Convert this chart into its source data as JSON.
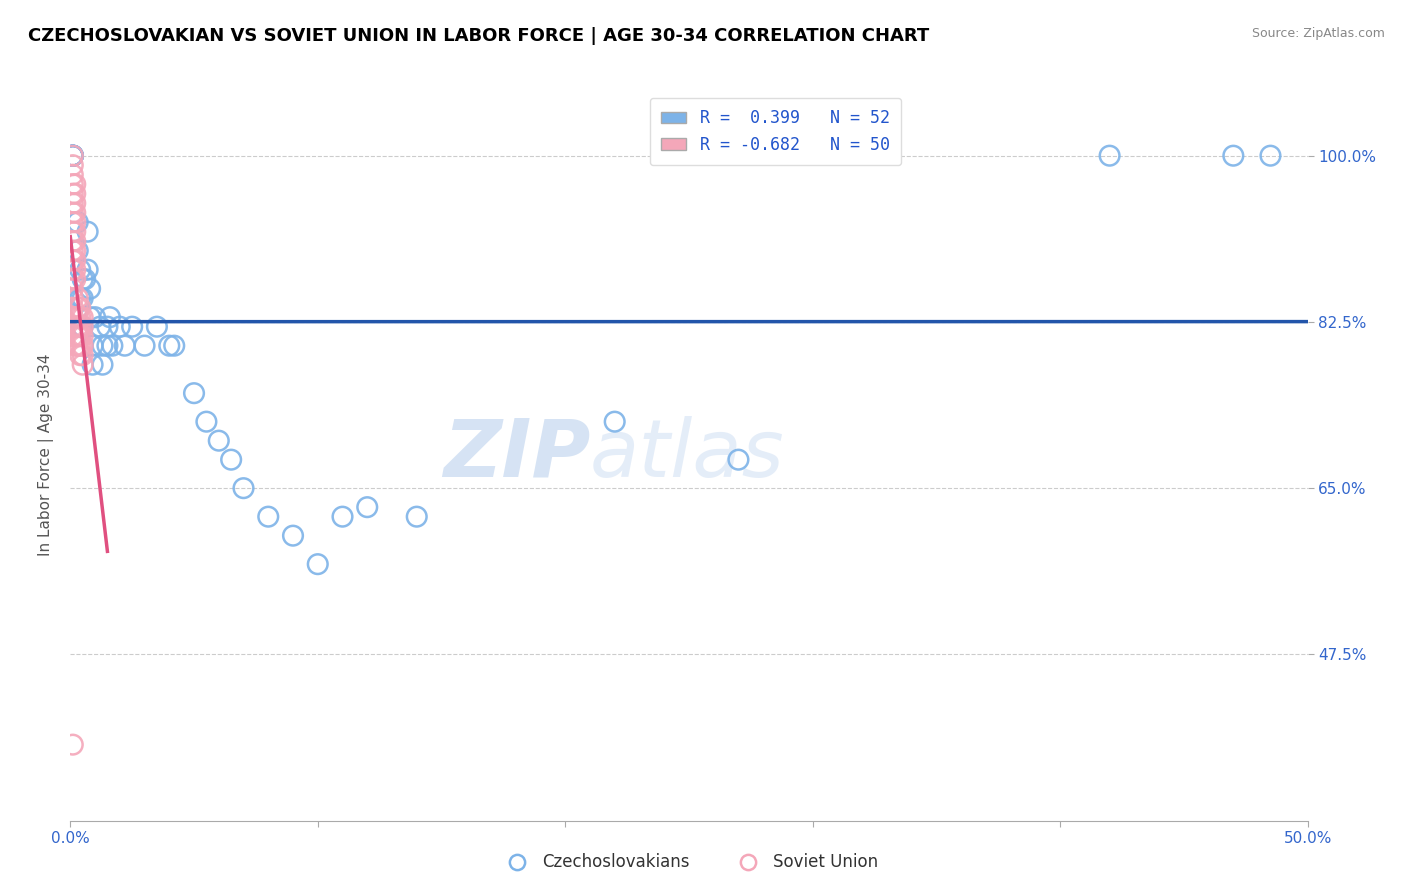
{
  "title": "CZECHOSLOVAKIAN VS SOVIET UNION IN LABOR FORCE | AGE 30-34 CORRELATION CHART",
  "source": "Source: ZipAtlas.com",
  "ylabel": "In Labor Force | Age 30-34",
  "xlim": [
    0.0,
    0.5
  ],
  "ylim": [
    0.3,
    1.07
  ],
  "ytick_labels": [
    "100.0%",
    "82.5%",
    "65.0%",
    "47.5%"
  ],
  "ytick_values": [
    1.0,
    0.825,
    0.65,
    0.475
  ],
  "xtick_values": [
    0.0,
    0.1,
    0.2,
    0.3,
    0.4,
    0.5
  ],
  "xtick_labels": [
    "0.0%",
    "",
    "",
    "",
    "",
    "50.0%"
  ],
  "blue_r": 0.399,
  "blue_n": 52,
  "pink_r": -0.682,
  "pink_n": 50,
  "blue_color": "#7db3e8",
  "pink_color": "#f4a7b9",
  "blue_line_color": "#2255aa",
  "pink_line_color": "#e05080",
  "blue_scatter_x": [
    0.001,
    0.001,
    0.001,
    0.001,
    0.001,
    0.001,
    0.001,
    0.001,
    0.003,
    0.003,
    0.004,
    0.004,
    0.005,
    0.005,
    0.005,
    0.006,
    0.007,
    0.007,
    0.008,
    0.008,
    0.009,
    0.009,
    0.01,
    0.012,
    0.013,
    0.013,
    0.015,
    0.015,
    0.016,
    0.017,
    0.02,
    0.022,
    0.025,
    0.03,
    0.035,
    0.04,
    0.042,
    0.05,
    0.055,
    0.06,
    0.065,
    0.07,
    0.08,
    0.09,
    0.1,
    0.12,
    0.14,
    0.22,
    0.27,
    0.42,
    0.47,
    0.485
  ],
  "blue_scatter_y": [
    1.0,
    1.0,
    1.0,
    1.0,
    1.0,
    1.0,
    1.0,
    1.0,
    0.93,
    0.9,
    0.88,
    0.85,
    0.87,
    0.85,
    0.82,
    0.87,
    0.92,
    0.88,
    0.86,
    0.83,
    0.8,
    0.78,
    0.83,
    0.82,
    0.8,
    0.78,
    0.82,
    0.8,
    0.83,
    0.8,
    0.82,
    0.8,
    0.82,
    0.8,
    0.82,
    0.8,
    0.8,
    0.75,
    0.72,
    0.7,
    0.68,
    0.65,
    0.62,
    0.6,
    0.57,
    0.63,
    0.62,
    0.72,
    0.68,
    1.0,
    1.0,
    1.0
  ],
  "pink_scatter_x": [
    0.001,
    0.001,
    0.001,
    0.001,
    0.001,
    0.001,
    0.001,
    0.001,
    0.001,
    0.001,
    0.001,
    0.001,
    0.001,
    0.001,
    0.001,
    0.001,
    0.001,
    0.001,
    0.001,
    0.001,
    0.002,
    0.002,
    0.002,
    0.002,
    0.002,
    0.002,
    0.002,
    0.002,
    0.002,
    0.002,
    0.002,
    0.002,
    0.003,
    0.003,
    0.003,
    0.003,
    0.003,
    0.003,
    0.004,
    0.004,
    0.004,
    0.004,
    0.004,
    0.004,
    0.005,
    0.005,
    0.005,
    0.005,
    0.005,
    0.005
  ],
  "pink_scatter_y": [
    1.0,
    0.99,
    0.98,
    0.97,
    0.96,
    0.95,
    0.94,
    0.93,
    0.92,
    0.91,
    0.9,
    0.89,
    0.88,
    0.87,
    0.86,
    0.85,
    0.84,
    0.83,
    0.82,
    0.81,
    0.97,
    0.96,
    0.95,
    0.94,
    0.93,
    0.92,
    0.91,
    0.9,
    0.89,
    0.88,
    0.87,
    0.8,
    0.85,
    0.84,
    0.83,
    0.82,
    0.81,
    0.8,
    0.84,
    0.83,
    0.82,
    0.81,
    0.8,
    0.79,
    0.83,
    0.82,
    0.81,
    0.8,
    0.79,
    0.78
  ],
  "pink_outlier_x": [
    0.001
  ],
  "pink_outlier_y": [
    0.38
  ],
  "blue_outlier_x": [
    0.11
  ],
  "blue_outlier_y": [
    0.62
  ]
}
